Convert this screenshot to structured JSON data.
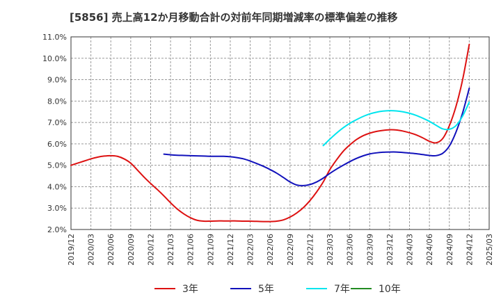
{
  "chart_data": {
    "type": "line",
    "title": "[5856]  売上高12か月移動合計の対前年同期増減率の標準偏差の推移",
    "xlabel": "",
    "ylabel": "",
    "ylim": [
      2.0,
      11.0
    ],
    "yticks": [
      "2.0%",
      "3.0%",
      "4.0%",
      "5.0%",
      "6.0%",
      "7.0%",
      "8.0%",
      "9.0%",
      "10.0%",
      "11.0%"
    ],
    "xticks": [
      "2019/12",
      "2020/03",
      "2020/06",
      "2020/09",
      "2020/12",
      "2021/03",
      "2021/06",
      "2021/09",
      "2021/12",
      "2022/03",
      "2022/06",
      "2022/09",
      "2022/12",
      "2023/03",
      "2023/06",
      "2023/09",
      "2023/12",
      "2024/03",
      "2024/06",
      "2024/09",
      "2024/12",
      "2025/03"
    ],
    "grid": true,
    "legend_position": "bottom",
    "series": [
      {
        "name": "3年",
        "color": "#dd1111",
        "points": [
          [
            "2019/12",
            5.0
          ],
          [
            "2020/01",
            5.1
          ],
          [
            "2020/02",
            5.2
          ],
          [
            "2020/03",
            5.3
          ],
          [
            "2020/04",
            5.38
          ],
          [
            "2020/05",
            5.43
          ],
          [
            "2020/06",
            5.45
          ],
          [
            "2020/07",
            5.42
          ],
          [
            "2020/08",
            5.3
          ],
          [
            "2020/09",
            5.1
          ],
          [
            "2020/10",
            4.78
          ],
          [
            "2020/11",
            4.45
          ],
          [
            "2020/12",
            4.15
          ],
          [
            "2021/01",
            3.87
          ],
          [
            "2021/02",
            3.57
          ],
          [
            "2021/03",
            3.25
          ],
          [
            "2021/04",
            2.96
          ],
          [
            "2021/05",
            2.73
          ],
          [
            "2021/06",
            2.55
          ],
          [
            "2021/07",
            2.43
          ],
          [
            "2021/08",
            2.39
          ],
          [
            "2021/09",
            2.39
          ],
          [
            "2021/10",
            2.4
          ],
          [
            "2021/11",
            2.4
          ],
          [
            "2021/12",
            2.4
          ],
          [
            "2022/01",
            2.4
          ],
          [
            "2022/02",
            2.39
          ],
          [
            "2022/03",
            2.39
          ],
          [
            "2022/04",
            2.38
          ],
          [
            "2022/05",
            2.37
          ],
          [
            "2022/06",
            2.37
          ],
          [
            "2022/07",
            2.39
          ],
          [
            "2022/08",
            2.45
          ],
          [
            "2022/09",
            2.58
          ],
          [
            "2022/10",
            2.77
          ],
          [
            "2022/11",
            3.02
          ],
          [
            "2022/12",
            3.35
          ],
          [
            "2023/01",
            3.75
          ],
          [
            "2023/02",
            4.22
          ],
          [
            "2023/03",
            4.8
          ],
          [
            "2023/04",
            5.25
          ],
          [
            "2023/05",
            5.65
          ],
          [
            "2023/06",
            5.95
          ],
          [
            "2023/07",
            6.2
          ],
          [
            "2023/08",
            6.38
          ],
          [
            "2023/09",
            6.5
          ],
          [
            "2023/10",
            6.58
          ],
          [
            "2023/11",
            6.63
          ],
          [
            "2023/12",
            6.66
          ],
          [
            "2024/01",
            6.65
          ],
          [
            "2024/02",
            6.6
          ],
          [
            "2024/03",
            6.52
          ],
          [
            "2024/04",
            6.42
          ],
          [
            "2024/05",
            6.28
          ],
          [
            "2024/06",
            6.12
          ],
          [
            "2024/07",
            6.05
          ],
          [
            "2024/08",
            6.25
          ],
          [
            "2024/09",
            6.85
          ],
          [
            "2024/10",
            7.75
          ],
          [
            "2024/11",
            9.0
          ],
          [
            "2024/12",
            10.65
          ]
        ]
      },
      {
        "name": "5年",
        "color": "#1111bb",
        "points": [
          [
            "2021/02",
            5.52
          ],
          [
            "2021/03",
            5.49
          ],
          [
            "2021/04",
            5.47
          ],
          [
            "2021/05",
            5.46
          ],
          [
            "2021/06",
            5.45
          ],
          [
            "2021/07",
            5.44
          ],
          [
            "2021/08",
            5.43
          ],
          [
            "2021/09",
            5.42
          ],
          [
            "2021/10",
            5.42
          ],
          [
            "2021/11",
            5.42
          ],
          [
            "2021/12",
            5.4
          ],
          [
            "2022/01",
            5.36
          ],
          [
            "2022/02",
            5.3
          ],
          [
            "2022/03",
            5.2
          ],
          [
            "2022/04",
            5.08
          ],
          [
            "2022/05",
            4.95
          ],
          [
            "2022/06",
            4.8
          ],
          [
            "2022/07",
            4.63
          ],
          [
            "2022/08",
            4.43
          ],
          [
            "2022/09",
            4.22
          ],
          [
            "2022/10",
            4.08
          ],
          [
            "2022/11",
            4.05
          ],
          [
            "2022/12",
            4.1
          ],
          [
            "2023/01",
            4.22
          ],
          [
            "2023/02",
            4.4
          ],
          [
            "2023/03",
            4.62
          ],
          [
            "2023/04",
            4.82
          ],
          [
            "2023/05",
            5.0
          ],
          [
            "2023/06",
            5.17
          ],
          [
            "2023/07",
            5.32
          ],
          [
            "2023/08",
            5.44
          ],
          [
            "2023/09",
            5.53
          ],
          [
            "2023/10",
            5.58
          ],
          [
            "2023/11",
            5.61
          ],
          [
            "2023/12",
            5.62
          ],
          [
            "2024/01",
            5.62
          ],
          [
            "2024/02",
            5.6
          ],
          [
            "2024/03",
            5.57
          ],
          [
            "2024/04",
            5.54
          ],
          [
            "2024/05",
            5.5
          ],
          [
            "2024/06",
            5.46
          ],
          [
            "2024/07",
            5.45
          ],
          [
            "2024/08",
            5.56
          ],
          [
            "2024/09",
            5.9
          ],
          [
            "2024/10",
            6.55
          ],
          [
            "2024/11",
            7.45
          ],
          [
            "2024/12",
            8.6
          ]
        ]
      },
      {
        "name": "7年",
        "color": "#00e5ee",
        "points": [
          [
            "2023/02",
            5.92
          ],
          [
            "2023/03",
            6.22
          ],
          [
            "2023/04",
            6.5
          ],
          [
            "2023/05",
            6.75
          ],
          [
            "2023/06",
            6.96
          ],
          [
            "2023/07",
            7.13
          ],
          [
            "2023/08",
            7.28
          ],
          [
            "2023/09",
            7.4
          ],
          [
            "2023/10",
            7.48
          ],
          [
            "2023/11",
            7.53
          ],
          [
            "2023/12",
            7.55
          ],
          [
            "2024/01",
            7.54
          ],
          [
            "2024/02",
            7.5
          ],
          [
            "2024/03",
            7.43
          ],
          [
            "2024/04",
            7.33
          ],
          [
            "2024/05",
            7.2
          ],
          [
            "2024/06",
            7.05
          ],
          [
            "2024/07",
            6.87
          ],
          [
            "2024/08",
            6.7
          ],
          [
            "2024/09",
            6.68
          ],
          [
            "2024/10",
            6.85
          ],
          [
            "2024/11",
            7.3
          ],
          [
            "2024/12",
            7.95
          ]
        ]
      },
      {
        "name": "10年",
        "color": "#228b22",
        "points": []
      }
    ]
  }
}
